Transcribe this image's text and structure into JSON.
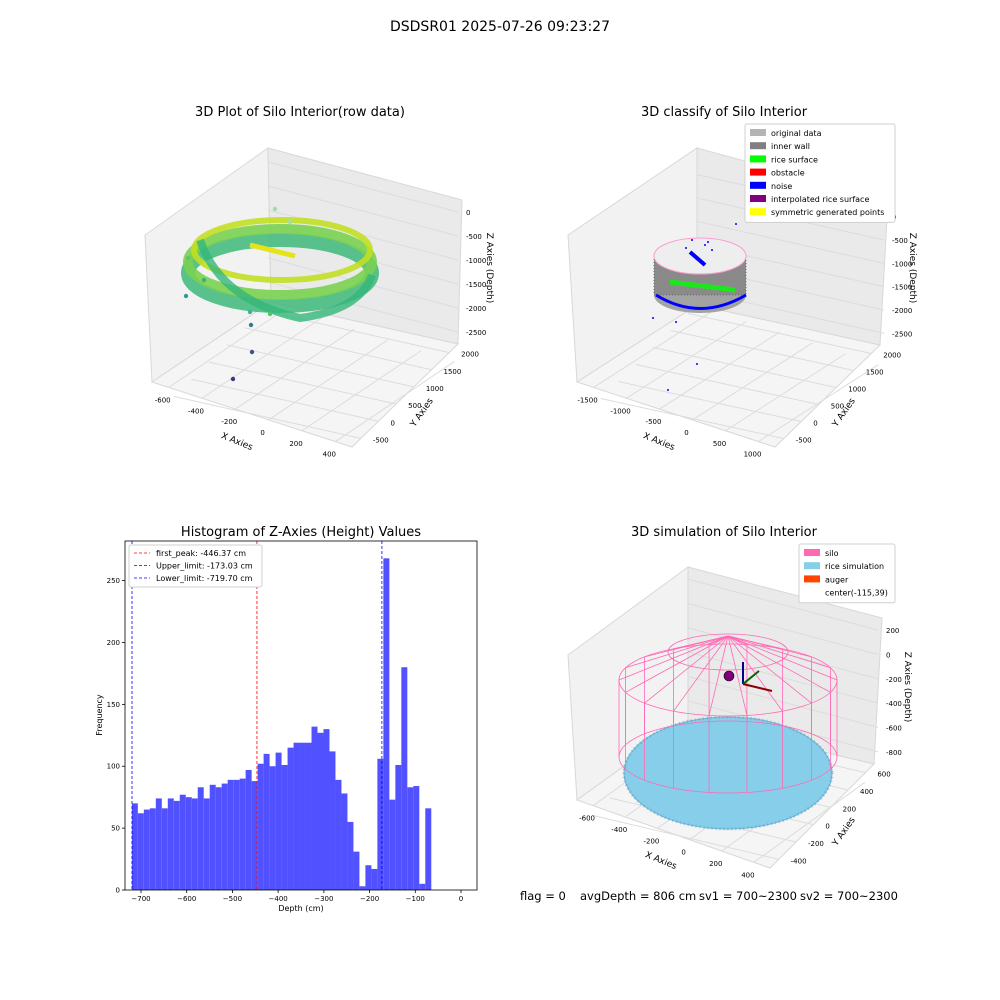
{
  "suptitle": "DSDSR01 2025-07-26 09:23:27",
  "footer": {
    "flag": "flag = 0",
    "avg_depth": "avgDepth = 806 cm",
    "sv1": "sv1 = 700~2300",
    "sv2": "sv2 = 700~2300"
  },
  "chart_data": [
    {
      "type": "scatter",
      "title": "3D Plot of Silo Interior(row data)",
      "xlabel": "X Axies",
      "ylabel": "Y Axies",
      "zlabel": "Z Axies (Depth)",
      "xticks": [
        "-600",
        "-400",
        "-200",
        "0",
        "200",
        "400"
      ],
      "yticks": [
        "-500",
        "0",
        "500",
        "1000",
        "1500",
        "2000"
      ],
      "zticks": [
        "0",
        "-500",
        "-1000",
        "-1500",
        "-2000",
        "-2500"
      ],
      "xlim": [
        -750,
        480
      ],
      "ylim": [
        -600,
        2150
      ],
      "zlim": [
        -2800,
        50
      ],
      "colormap": "viridis",
      "grid": true
    },
    {
      "type": "scatter",
      "title": "3D classify of Silo Interior",
      "xlabel": "X Axies",
      "ylabel": "Y Axies",
      "zlabel": "Z Axies (Depth)",
      "xticks": [
        "-1500",
        "-1000",
        "-500",
        "0",
        "500",
        "1000"
      ],
      "yticks": [
        "-500",
        "0",
        "500",
        "1000",
        "1500",
        "2000"
      ],
      "zticks": [
        "0",
        "-500",
        "-1000",
        "-1500",
        "-2000",
        "-2500"
      ],
      "xlim": [
        -1600,
        1100
      ],
      "ylim": [
        -600,
        2150
      ],
      "zlim": [
        -2800,
        50
      ],
      "legend_position": "top-right",
      "legend": [
        {
          "label": "original data",
          "color": "#b4b4b4"
        },
        {
          "label": "inner wall",
          "color": "#808080"
        },
        {
          "label": "rice surface",
          "color": "#00ff00"
        },
        {
          "label": "obstacle",
          "color": "#ff0000"
        },
        {
          "label": "noise",
          "color": "#0000ff"
        },
        {
          "label": "interpolated rice surface",
          "color": "#800080"
        },
        {
          "label": "symmetric generated points",
          "color": "#ffff00"
        }
      ],
      "grid": true
    },
    {
      "type": "bar",
      "title": "Histogram of Z-Axies (Height) Values",
      "xlabel": "Depth (cm)",
      "ylabel": "Frequency",
      "xlim": [
        -735,
        35
      ],
      "ylim": [
        0,
        282
      ],
      "xticks": [
        -700,
        -600,
        -500,
        -400,
        -300,
        -200,
        -100,
        0
      ],
      "yticks": [
        0,
        50,
        100,
        150,
        200,
        250
      ],
      "bin_start": -720,
      "bin_width": 13.1,
      "values": [
        70,
        62,
        65,
        66,
        74,
        66,
        74,
        72,
        77,
        75,
        74,
        83,
        74,
        85,
        83,
        86,
        89,
        89,
        90,
        97,
        88,
        102,
        110,
        100,
        111,
        101,
        115,
        119,
        119,
        119,
        132,
        127,
        130,
        112,
        89,
        78,
        55,
        31,
        3,
        20,
        17,
        106,
        268,
        73,
        101,
        180,
        83,
        84,
        5,
        66
      ],
      "bar_color": "#5151ff",
      "legend_position": "top-left",
      "lines": [
        {
          "label": "first_peak: -446.37 cm",
          "x": -446.37,
          "color": "#ff0000"
        },
        {
          "label": "Upper_limit: -173.03 cm",
          "x": -173.03,
          "color": "#0000ff"
        },
        {
          "label": "Lower_limit: -719.70 cm",
          "x": -719.7,
          "color": "#0000ff"
        }
      ],
      "grid": false
    },
    {
      "type": "scatter",
      "title": "3D simulation of Silo Interior",
      "xlabel": "X Axies",
      "ylabel": "Y Axies",
      "zlabel": "Z Axies (Depth)",
      "xticks": [
        "-600",
        "-400",
        "-200",
        "0",
        "200",
        "400"
      ],
      "yticks": [
        "-400",
        "-200",
        "0",
        "200",
        "400",
        "600"
      ],
      "zticks": [
        "200",
        "0",
        "-200",
        "-400",
        "-600",
        "-800"
      ],
      "xlim": [
        -700,
        480
      ],
      "ylim": [
        -500,
        650
      ],
      "zlim": [
        -950,
        300
      ],
      "legend_position": "top-right",
      "legend": [
        {
          "label": "silo",
          "color": "#ff69b4"
        },
        {
          "label": "rice simulation",
          "color": "#87ceeb"
        },
        {
          "label": "auger",
          "color": "#ff4500"
        },
        {
          "label": "center(-115,39)",
          "color": ""
        }
      ],
      "grid": true
    }
  ]
}
